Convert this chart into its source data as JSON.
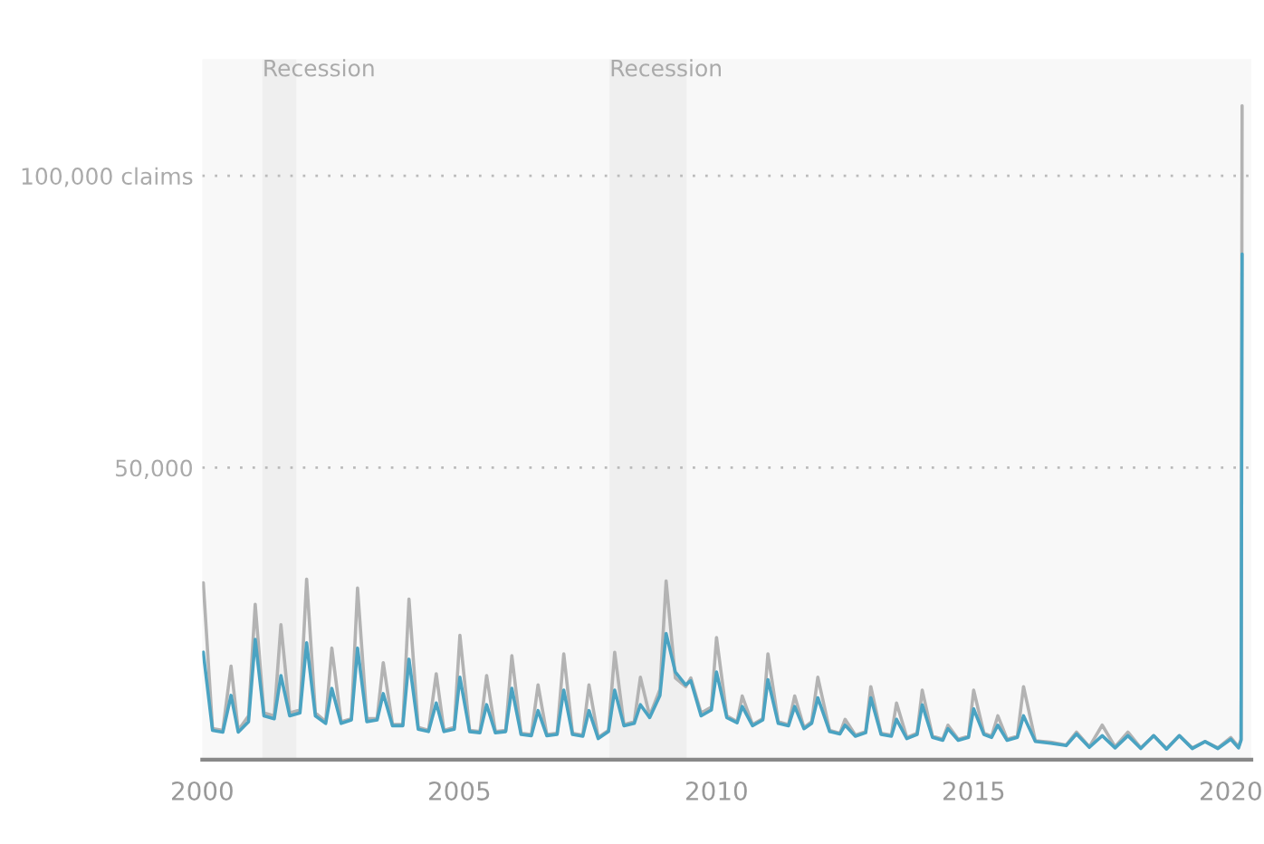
{
  "chart_data": {
    "type": "line",
    "x": [
      2000.02,
      2000.2,
      2000.4,
      2000.56,
      2000.7,
      2000.9,
      2001.03,
      2001.2,
      2001.4,
      2001.53,
      2001.7,
      2001.9,
      2002.03,
      2002.2,
      2002.4,
      2002.52,
      2002.7,
      2002.9,
      2003.02,
      2003.2,
      2003.4,
      2003.52,
      2003.7,
      2003.9,
      2004.02,
      2004.2,
      2004.4,
      2004.55,
      2004.7,
      2004.9,
      2005.01,
      2005.2,
      2005.4,
      2005.53,
      2005.7,
      2005.9,
      2006.02,
      2006.2,
      2006.4,
      2006.53,
      2006.7,
      2006.9,
      2007.03,
      2007.2,
      2007.4,
      2007.52,
      2007.7,
      2007.9,
      2008.02,
      2008.2,
      2008.4,
      2008.52,
      2008.7,
      2008.9,
      2009.02,
      2009.2,
      2009.4,
      2009.5,
      2009.7,
      2009.9,
      2010.0,
      2010.2,
      2010.4,
      2010.5,
      2010.7,
      2010.9,
      2011.0,
      2011.2,
      2011.4,
      2011.52,
      2011.7,
      2011.85,
      2011.97,
      2012.2,
      2012.4,
      2012.5,
      2012.7,
      2012.9,
      2013.0,
      2013.2,
      2013.4,
      2013.5,
      2013.7,
      2013.9,
      2014.0,
      2014.2,
      2014.4,
      2014.5,
      2014.7,
      2014.9,
      2015.0,
      2015.2,
      2015.35,
      2015.47,
      2015.65,
      2015.85,
      2015.97,
      2016.2,
      2016.5,
      2016.8,
      2017.0,
      2017.25,
      2017.5,
      2017.75,
      2018.0,
      2018.25,
      2018.5,
      2018.75,
      2019.0,
      2019.25,
      2019.5,
      2019.75,
      2020.0,
      2020.15,
      2020.2,
      2020.22
    ],
    "series": [
      {
        "color": "#b3b3b3",
        "values": [
          30300,
          5300,
          5000,
          16000,
          5000,
          7500,
          26600,
          8000,
          7500,
          23100,
          8000,
          8500,
          30900,
          8000,
          6500,
          19100,
          6500,
          7000,
          29400,
          7000,
          7000,
          16600,
          6000,
          6000,
          27500,
          5500,
          5000,
          14700,
          5000,
          5500,
          21300,
          5000,
          4800,
          14400,
          4800,
          5000,
          17800,
          4500,
          4300,
          12800,
          4300,
          4500,
          18100,
          4500,
          4200,
          12800,
          3800,
          5000,
          18400,
          6000,
          6500,
          14100,
          7500,
          12000,
          30600,
          14000,
          12500,
          14000,
          8000,
          9000,
          20900,
          7500,
          6500,
          10900,
          6000,
          7000,
          18100,
          6500,
          6000,
          10900,
          5500,
          6500,
          14100,
          5000,
          4500,
          6900,
          4200,
          4800,
          12500,
          4500,
          4200,
          9700,
          3800,
          4500,
          11900,
          4000,
          3500,
          5900,
          3500,
          4000,
          11900,
          4500,
          4000,
          7500,
          3500,
          4000,
          12500,
          3200,
          3000,
          2500,
          4700,
          2200,
          5900,
          2200,
          4700,
          2000,
          4100,
          1900,
          4100,
          2000,
          3100,
          2000,
          3800,
          2200,
          3500,
          112000
        ]
      },
      {
        "color": "#4aa3c2",
        "values": [
          18400,
          5000,
          4700,
          11000,
          4700,
          6500,
          20600,
          7500,
          7000,
          14400,
          7500,
          8000,
          20000,
          7500,
          6200,
          12200,
          6200,
          6800,
          19100,
          6500,
          6800,
          11300,
          5800,
          5800,
          17200,
          5200,
          4800,
          9700,
          4800,
          5200,
          14100,
          4800,
          4600,
          9400,
          4600,
          4800,
          12200,
          4300,
          4100,
          8400,
          4100,
          4300,
          11900,
          4300,
          4000,
          8400,
          3600,
          4800,
          11900,
          5800,
          6200,
          9400,
          7200,
          11000,
          21600,
          15000,
          12800,
          13500,
          7500,
          8500,
          15000,
          7200,
          6300,
          9100,
          5800,
          6800,
          13700,
          6200,
          5800,
          9100,
          5300,
          6200,
          10600,
          4800,
          4400,
          5900,
          4000,
          4600,
          10600,
          4300,
          4000,
          6900,
          3600,
          4300,
          9400,
          3800,
          3300,
          5300,
          3300,
          3800,
          8700,
          4300,
          3800,
          5900,
          3300,
          3800,
          7500,
          3100,
          2800,
          2400,
          4400,
          2100,
          4100,
          2000,
          4100,
          1900,
          4100,
          1800,
          4100,
          1900,
          3100,
          1900,
          3500,
          2000,
          3300,
          86600
        ]
      }
    ],
    "xlim": [
      2000,
      2020.4
    ],
    "ylim": [
      0,
      120000
    ],
    "xticks": [
      2000,
      2005,
      2010,
      2015,
      2020
    ],
    "yticks": [
      {
        "value": 50000,
        "label": "50,000"
      },
      {
        "value": 100000,
        "label": "100,000 claims"
      }
    ],
    "grid": "y",
    "bands": [
      {
        "axis": "x",
        "from": 2001.17,
        "to": 2001.83,
        "label": "Recession",
        "color": "#efefef"
      },
      {
        "axis": "x",
        "from": 2007.92,
        "to": 2009.42,
        "label": "Recession",
        "color": "#efefef"
      }
    ]
  }
}
